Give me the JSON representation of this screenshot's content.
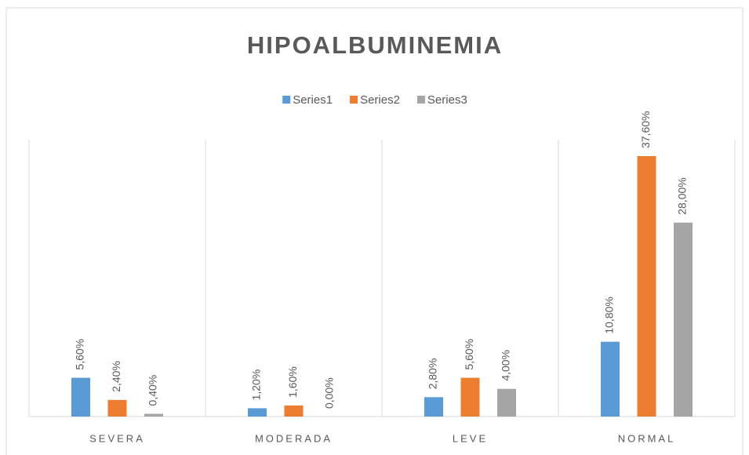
{
  "chart_data": {
    "type": "bar",
    "title": "HIPOALBUMINEMIA",
    "categories": [
      "SEVERA",
      "MODERADA",
      "LEVE",
      "NORMAL"
    ],
    "series": [
      {
        "name": "Series1",
        "color": "#5b9bd5",
        "values": [
          5.6,
          1.2,
          2.8,
          10.8
        ],
        "value_labels": [
          "5,60%",
          "1,20%",
          "2,80%",
          "10,80%"
        ]
      },
      {
        "name": "Series2",
        "color": "#ed7d31",
        "values": [
          2.4,
          1.6,
          5.6,
          37.6
        ],
        "value_labels": [
          "2,40%",
          "1,60%",
          "5,60%",
          "37,60%"
        ]
      },
      {
        "name": "Series3",
        "color": "#a5a5a5",
        "values": [
          0.4,
          0,
          4,
          28
        ],
        "value_labels": [
          "0,40%",
          "0,00%",
          "4,00%",
          "28,00%"
        ]
      }
    ],
    "legend": "top"
  }
}
